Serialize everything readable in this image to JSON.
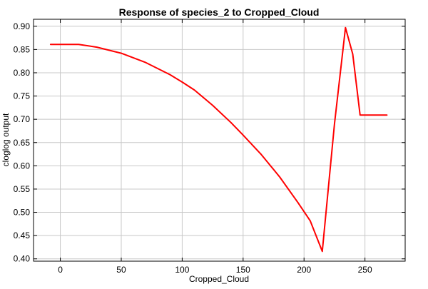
{
  "chart_data": {
    "type": "line",
    "title": "Response of species_2 to Cropped_Cloud",
    "xlabel": "Cropped_Cloud",
    "ylabel": "cloglog output",
    "xlim": [
      -22,
      283
    ],
    "ylim": [
      0.395,
      0.915
    ],
    "x_ticks": [
      0,
      50,
      100,
      150,
      200,
      250
    ],
    "y_ticks": [
      0.4,
      0.45,
      0.5,
      0.55,
      0.6,
      0.65,
      0.7,
      0.75,
      0.8,
      0.85,
      0.9
    ],
    "grid": true,
    "legend": "none",
    "series": [
      {
        "color": "#ff0000",
        "x": [
          -8,
          15,
          30,
          50,
          70,
          90,
          100,
          110,
          125,
          140,
          150,
          165,
          180,
          195,
          205,
          215,
          225,
          234,
          240,
          246,
          268
        ],
        "y": [
          0.861,
          0.861,
          0.855,
          0.842,
          0.822,
          0.796,
          0.78,
          0.763,
          0.73,
          0.693,
          0.666,
          0.624,
          0.576,
          0.521,
          0.482,
          0.416,
          0.69,
          0.897,
          0.84,
          0.709,
          0.709
        ]
      }
    ]
  }
}
